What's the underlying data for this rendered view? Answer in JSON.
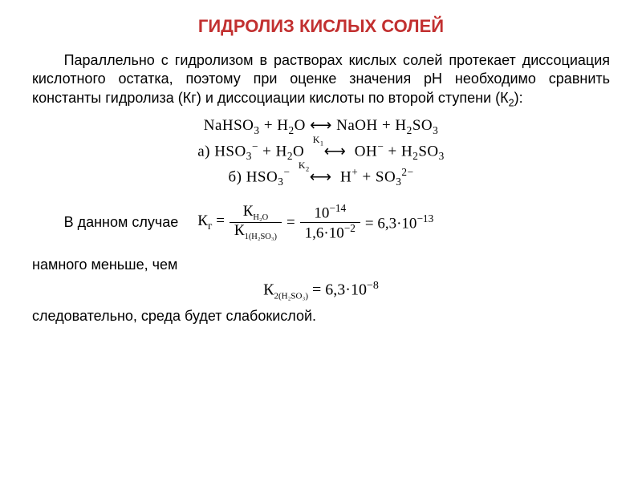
{
  "title": "ГИДРОЛИЗ КИСЛЫХ СОЛЕЙ",
  "title_color": "#c23030",
  "paragraph": "Параллельно с гидролизом в растворах кислых солей протекает диссоциация кислотного остатка, поэтому при оценке значения рН необходимо сравнить константы гидролиза (Кг) и диссоциации кислоты по второй ступени (К",
  "paragraph_tail": "):",
  "eq1_left": "NaHSO",
  "eq1_mid": " + H",
  "eq1_o": "O  ⟷  NaOH + H",
  "eq1_end": "SO",
  "eq2_a": "а) HSO",
  "eq2_mid": " + H",
  "eq2_o": "O  ⟷  OH",
  "eq2_end": " + H",
  "eq2_end2": "SO",
  "k1_label": "K",
  "eq3_b": "б) HSO",
  "eq3_arrow": "  ⟷  H",
  "eq3_end": " + SO",
  "k2_label": "K",
  "case_text": "В данном случае",
  "kg_label": "К",
  "kg_sub": "г",
  "kw_label": "К",
  "kw_sub": "H₂O",
  "k1_label2": "К",
  "k1_sub2": "1(H₂SO₃)",
  "ten": "10",
  "exp14": "−14",
  "val_den": "1,6·10",
  "exp_den": "−2",
  "eq_res": " = 6,3·10",
  "exp_res": "−13",
  "less_text": "намного меньше, чем",
  "k2_eq_label": "К",
  "k2_eq_sub": "2(H₂SO₃)",
  "k2_eq_val": " = 6,3·10",
  "k2_eq_exp": "−8",
  "final_text": "следовательно, среда будет слабокислой.",
  "colors": {
    "text": "#2a2a2a",
    "title": "#c23030",
    "bg": "#ffffff"
  },
  "fonts": {
    "body_family": "Arial, sans-serif",
    "eq_family": "Times New Roman, serif",
    "body_size_pt": 14,
    "title_size_pt": 17,
    "eq_size_pt": 14
  }
}
